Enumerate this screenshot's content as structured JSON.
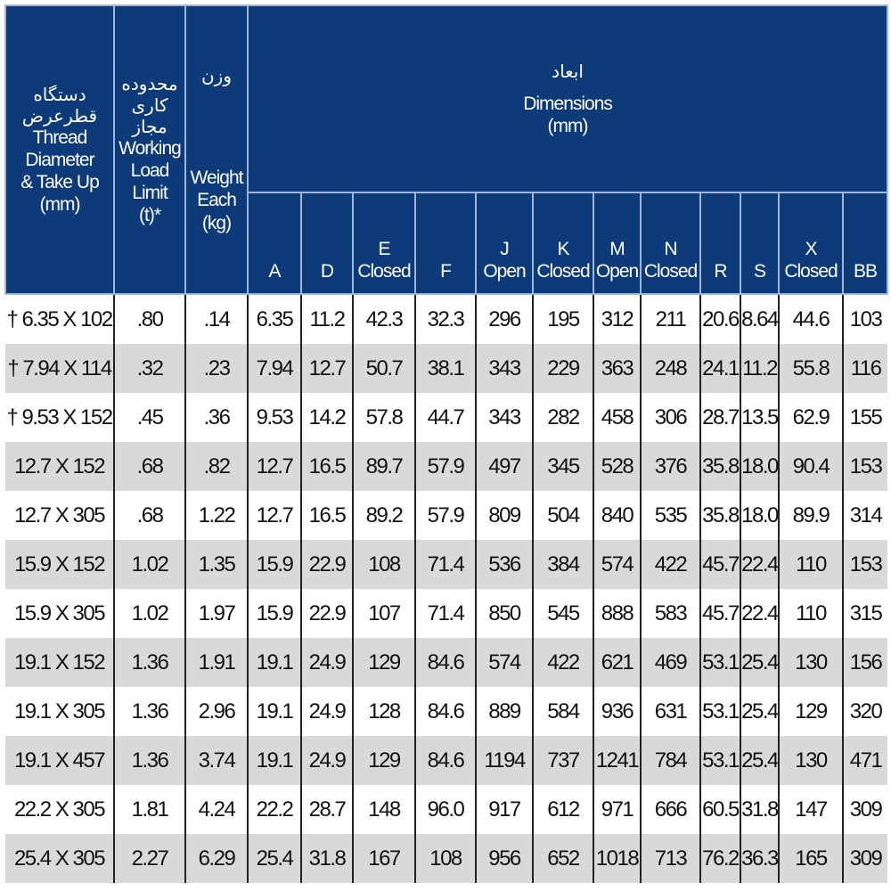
{
  "header": {
    "thread": {
      "fa": [
        "دستگاه",
        "قطرعرض"
      ],
      "en": [
        "Thread",
        "Diameter",
        "& Take Up",
        "(mm)"
      ]
    },
    "wll": {
      "fa": [
        "محدوده کاری",
        "مجاز"
      ],
      "en": [
        "Working",
        "Load",
        "Limit",
        "(t)*"
      ]
    },
    "weight": {
      "fa": [
        "وزن"
      ],
      "en": [
        "Weight",
        "Each",
        "(kg)"
      ]
    },
    "dimensions": {
      "fa": "ابعاد",
      "en": "Dimensions",
      "unit": "(mm)"
    },
    "columns": [
      {
        "letter": "A",
        "sub": ""
      },
      {
        "letter": "D",
        "sub": ""
      },
      {
        "letter": "E",
        "sub": "Closed"
      },
      {
        "letter": "F",
        "sub": ""
      },
      {
        "letter": "J",
        "sub": "Open"
      },
      {
        "letter": "K",
        "sub": "Closed"
      },
      {
        "letter": "M",
        "sub": "Open"
      },
      {
        "letter": "N",
        "sub": "Closed"
      },
      {
        "letter": "R",
        "sub": ""
      },
      {
        "letter": "S",
        "sub": ""
      },
      {
        "letter": "X",
        "sub": "Closed"
      },
      {
        "letter": "BB",
        "sub": ""
      }
    ]
  },
  "rows": [
    [
      "† 6.35 X 102",
      ".80",
      ".14",
      "6.35",
      "11.2",
      "42.3",
      "32.3",
      "296",
      "195",
      "312",
      "211",
      "20.6",
      "8.64",
      "44.6",
      "103"
    ],
    [
      "† 7.94 X 114",
      ".32",
      ".23",
      "7.94",
      "12.7",
      "50.7",
      "38.1",
      "343",
      "229",
      "363",
      "248",
      "24.1",
      "11.2",
      "55.8",
      "116"
    ],
    [
      "† 9.53 X 152",
      ".45",
      ".36",
      "9.53",
      "14.2",
      "57.8",
      "44.7",
      "343",
      "282",
      "458",
      "306",
      "28.7",
      "13.5",
      "62.9",
      "155"
    ],
    [
      "12.7 X 152",
      ".68",
      ".82",
      "12.7",
      "16.5",
      "89.7",
      "57.9",
      "497",
      "345",
      "528",
      "376",
      "35.8",
      "18.0",
      "90.4",
      "153"
    ],
    [
      "12.7 X 305",
      ".68",
      "1.22",
      "12.7",
      "16.5",
      "89.2",
      "57.9",
      "809",
      "504",
      "840",
      "535",
      "35.8",
      "18.0",
      "89.9",
      "314"
    ],
    [
      "15.9 X 152",
      "1.02",
      "1.35",
      "15.9",
      "22.9",
      "108",
      "71.4",
      "536",
      "384",
      "574",
      "422",
      "45.7",
      "22.4",
      "110",
      "153"
    ],
    [
      "15.9 X 305",
      "1.02",
      "1.97",
      "15.9",
      "22.9",
      "107",
      "71.4",
      "850",
      "545",
      "888",
      "583",
      "45.7",
      "22.4",
      "110",
      "315"
    ],
    [
      "19.1 X 152",
      "1.36",
      "1.91",
      "19.1",
      "24.9",
      "129",
      "84.6",
      "574",
      "422",
      "621",
      "469",
      "53.1",
      "25.4",
      "130",
      "156"
    ],
    [
      "19.1 X 305",
      "1.36",
      "2.96",
      "19.1",
      "24.9",
      "128",
      "84.6",
      "889",
      "584",
      "936",
      "631",
      "53.1",
      "25.4",
      "129",
      "320"
    ],
    [
      "19.1 X 457",
      "1.36",
      "3.74",
      "19.1",
      "24.9",
      "129",
      "84.6",
      "1194",
      "737",
      "1241",
      "784",
      "53.1",
      "25.4",
      "130",
      "471"
    ],
    [
      "22.2 X 305",
      "1.81",
      "4.24",
      "22.2",
      "28.7",
      "148",
      "96.0",
      "917",
      "612",
      "971",
      "666",
      "60.5",
      "31.8",
      "147",
      "309"
    ],
    [
      "25.4 X 305",
      "2.27",
      "6.29",
      "25.4",
      "31.8",
      "167",
      "108",
      "956",
      "652",
      "1018",
      "713",
      "76.2",
      "36.3",
      "165",
      "309"
    ]
  ],
  "colors": {
    "header_bg": "#0d3a78",
    "alt_row": "#d9d9d9"
  }
}
